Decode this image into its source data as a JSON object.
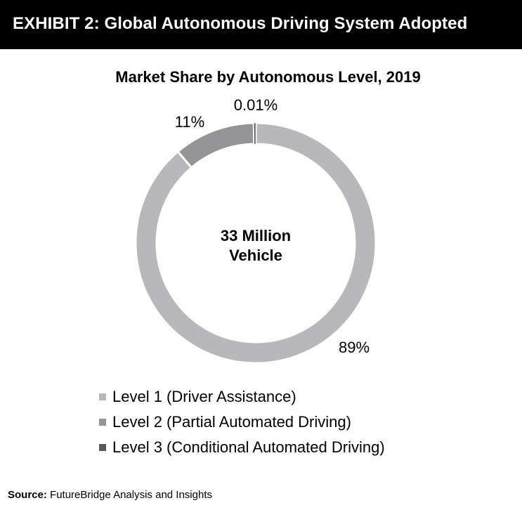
{
  "header": {
    "title": "EXHIBIT 2: Global Autonomous Driving System Adopted"
  },
  "chart_data": {
    "type": "pie",
    "title": "Market Share by Autonomous Level, 2019",
    "center_label_line1": "33 Million",
    "center_label_line2": "Vehicle",
    "categories": [
      "Level 1 (Driver Assistance)",
      "Level 2 (Partial Automated Driving)",
      "Level 3 (Conditional Automated Driving)"
    ],
    "values": [
      89,
      11,
      0.01
    ],
    "value_labels": [
      "89%",
      "11%",
      "0.01%"
    ],
    "colors": [
      "#b8b7b9",
      "#959497",
      "#58585b"
    ],
    "legend_position": "bottom-left",
    "donut": true
  },
  "source": {
    "label": "Source:",
    "text": " FutureBridge Analysis and Insights"
  }
}
